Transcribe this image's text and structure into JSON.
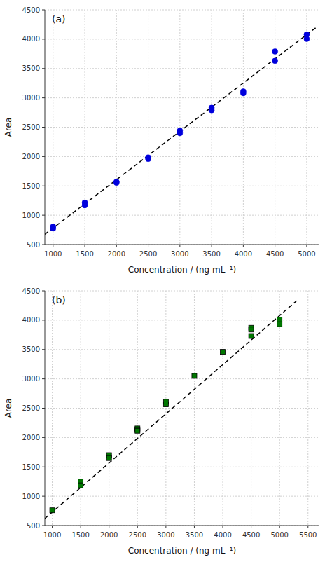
{
  "chart_data": [
    {
      "type": "scatter",
      "annotations": [
        "(a)"
      ],
      "x_label": "Concentration / (ng mL⁻¹)",
      "y_label": "Area",
      "xlim": [
        870,
        5200
      ],
      "ylim": [
        500,
        4500
      ],
      "xticks": [
        1000,
        1500,
        2000,
        2500,
        3000,
        3500,
        4000,
        4500,
        5000
      ],
      "yticks": [
        500,
        1000,
        1500,
        2000,
        2500,
        3000,
        3500,
        4000,
        4500
      ],
      "grid": true,
      "series": [
        {
          "type": "scatter",
          "color": "#0000DD",
          "marker": "circle",
          "x": [
            1000,
            1000,
            1500,
            1500,
            2000,
            2000,
            2500,
            2500,
            3000,
            3000,
            3500,
            3500,
            4000,
            4000,
            4500,
            4500,
            5000,
            5000
          ],
          "values": [
            805,
            775,
            1215,
            1170,
            1570,
            1555,
            1985,
            1960,
            2440,
            2400,
            2830,
            2790,
            3110,
            3080,
            3790,
            3630,
            4080,
            4005
          ]
        },
        {
          "type": "line",
          "color": "#000000",
          "line_style": "dashed",
          "x": [
            870,
            5150
          ],
          "values": [
            675,
            4200
          ]
        }
      ]
    },
    {
      "type": "scatter",
      "annotations": [
        "(b)"
      ],
      "x_label": "Concentration / (ng mL⁻¹)",
      "y_label": "Area",
      "xlim": [
        870,
        5700
      ],
      "ylim": [
        500,
        4500
      ],
      "xticks": [
        1000,
        1500,
        2000,
        2500,
        3000,
        3500,
        4000,
        4500,
        5000,
        5500
      ],
      "yticks": [
        500,
        1000,
        1500,
        2000,
        2500,
        3000,
        3500,
        4000,
        4500
      ],
      "grid": true,
      "series": [
        {
          "type": "scatter",
          "color": "#007700",
          "marker": "square",
          "x": [
            1000,
            1500,
            1500,
            2000,
            2000,
            2500,
            2500,
            2500,
            3000,
            3000,
            3500,
            4000,
            4500,
            4500,
            4500,
            5000,
            5000
          ],
          "values": [
            760,
            1250,
            1185,
            1700,
            1650,
            2155,
            2130,
            2115,
            2610,
            2565,
            3050,
            3460,
            3870,
            3840,
            3730,
            4010,
            3930
          ]
        },
        {
          "type": "line",
          "color": "#000000",
          "line_style": "dashed",
          "x": [
            870,
            5300
          ],
          "values": [
            620,
            4330
          ]
        }
      ]
    }
  ]
}
